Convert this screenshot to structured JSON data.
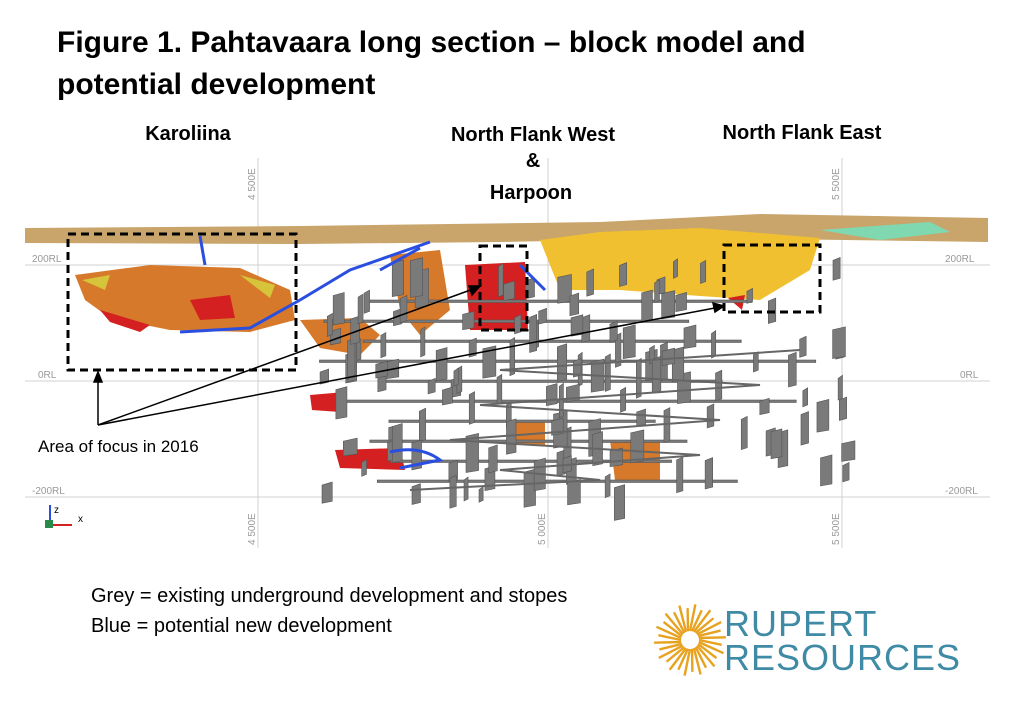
{
  "header": {
    "title_lines": [
      "Figure 1.  Pahtavaara long section – block model and",
      "potential development"
    ]
  },
  "zones": {
    "karoliina": "Karoliina",
    "north_flank_west": "North Flank West",
    "ampersand": "&",
    "harpoon": "Harpoon",
    "north_flank_east": "North Flank East"
  },
  "grid": {
    "levels": [
      "200RL",
      "0RL",
      "-200RL"
    ],
    "eastings": [
      "4 500E",
      "5 000E",
      "5 500E"
    ]
  },
  "axes": {
    "z": "z",
    "x": "x"
  },
  "annotation": "Area of focus in 2016",
  "legend": [
    "Grey = existing underground development and stopes",
    "Blue = potential new development"
  ],
  "logo": [
    "RUPERT",
    "RESOURCES"
  ]
}
